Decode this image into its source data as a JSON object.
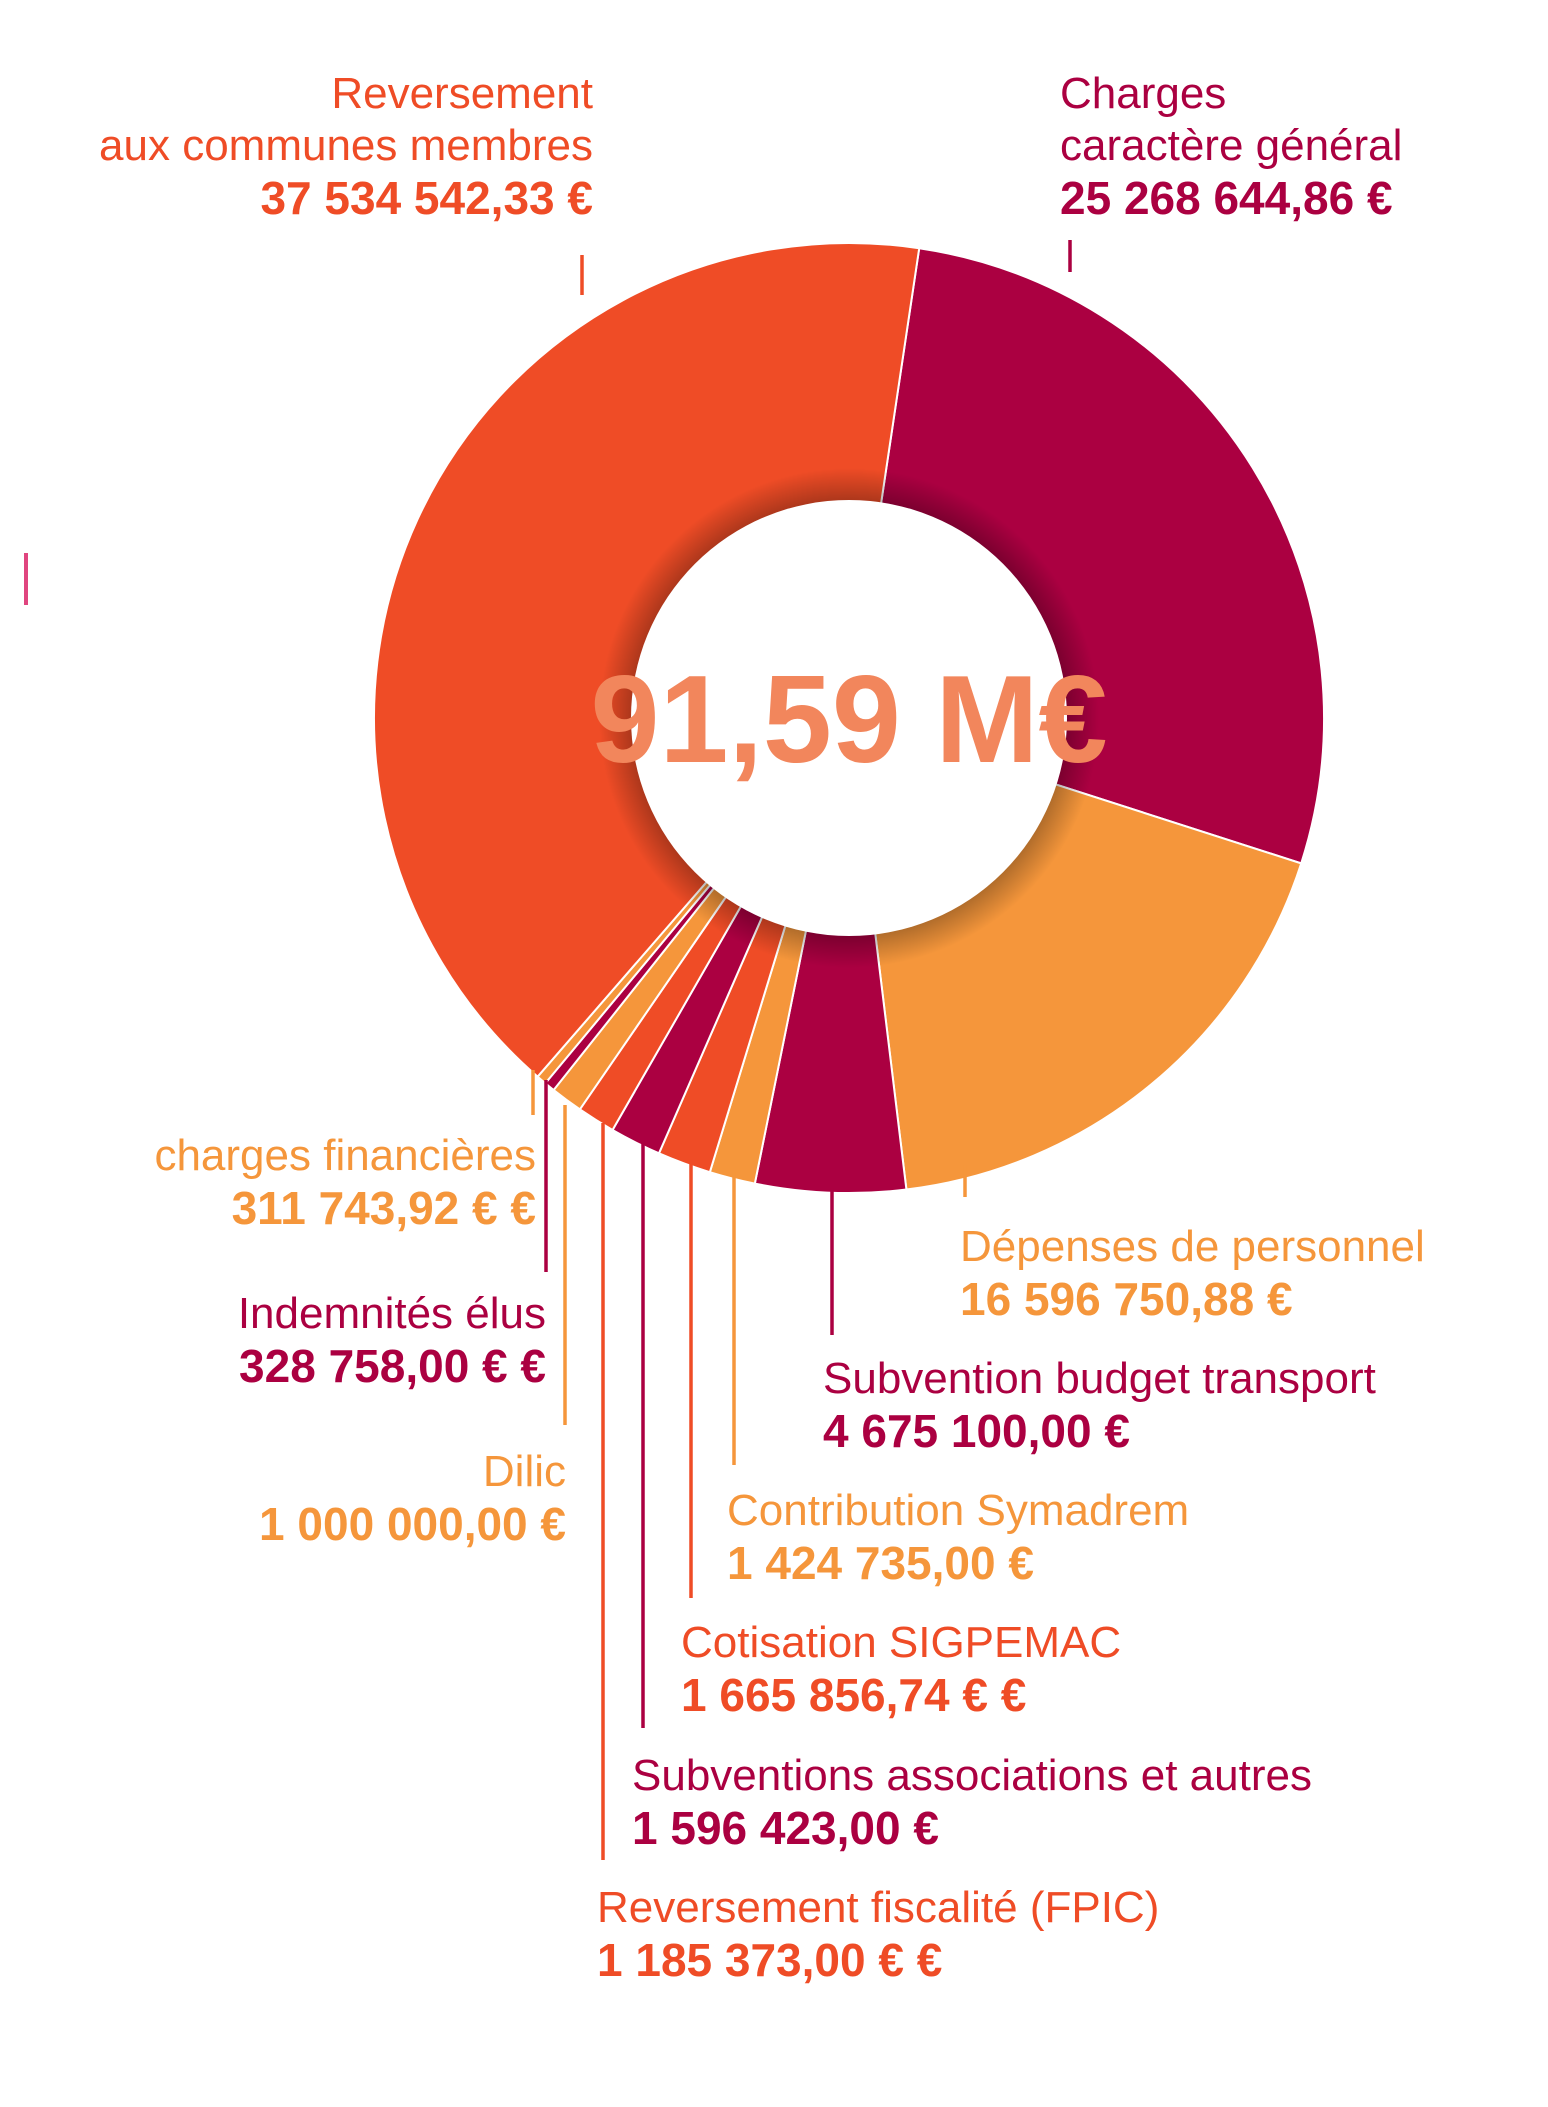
{
  "colors": {
    "red_orange": "#ef4c26",
    "crimson": "#ab0041",
    "orange": "#f5963b",
    "center_text": "#f2865c"
  },
  "center_total": "91,59 M€",
  "chart_data": {
    "type": "pie",
    "donut": true,
    "start_angle_deg": 8.5,
    "direction": "clockwise",
    "slices": [
      {
        "name": "Charges\ncaractère général",
        "value": 25268644.86,
        "label": "25 268 644,86 €",
        "color": "#ab0041"
      },
      {
        "name": "Dépenses de personnel",
        "value": 16596750.88,
        "label": "16 596 750,88 €",
        "color": "#f5963b"
      },
      {
        "name": "Subvention budget transport",
        "value": 4675100.0,
        "label": "4 675 100,00 €",
        "color": "#ab0041"
      },
      {
        "name": "Contribution Symadrem",
        "value": 1424735.0,
        "label": "1 424 735,00 €",
        "color": "#f5963b"
      },
      {
        "name": "Cotisation SIGPEMAC",
        "value": 1665856.74,
        "label": "1 665 856,74 € €",
        "color": "#ef4c26"
      },
      {
        "name": "Subventions associations et autres",
        "value": 1596423.0,
        "label": "1 596 423,00 €",
        "color": "#ab0041"
      },
      {
        "name": "Reversement fiscalité (FPIC)",
        "value": 1185373.0,
        "label": "1 185 373,00 € €",
        "color": "#ef4c26"
      },
      {
        "name": "Dilic",
        "value": 1000000.0,
        "label": "1 000 000,00 €",
        "color": "#f5963b"
      },
      {
        "name": "Indemnités élus",
        "value": 328758.0,
        "label": "328 758,00 € €",
        "color": "#ab0041"
      },
      {
        "name": "charges financières",
        "value": 311743.92,
        "label": "311 743,92 € €",
        "color": "#f5963b"
      },
      {
        "name": "Reversement\naux communes membres",
        "value": 37534542.33,
        "label": "37 534 542,33 €",
        "color": "#ef4c26"
      }
    ]
  }
}
